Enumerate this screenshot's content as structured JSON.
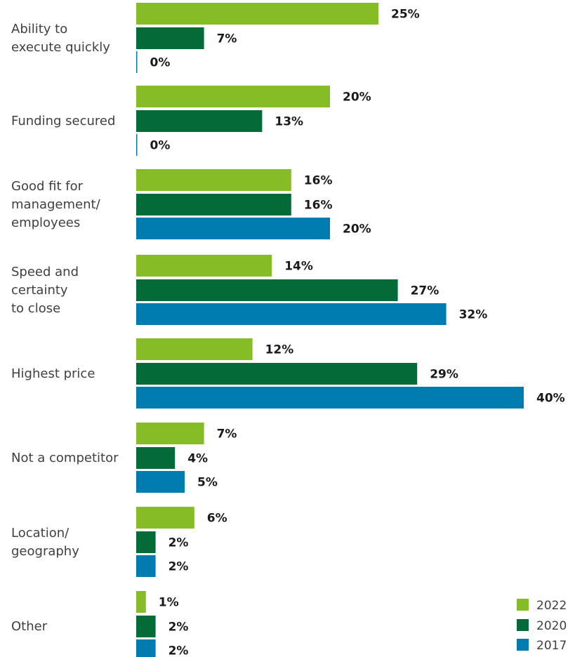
{
  "chart_data": {
    "type": "bar",
    "orientation": "horizontal",
    "categories": [
      [
        "Ability to",
        "execute quickly"
      ],
      [
        "Funding secured"
      ],
      [
        "Good fit for",
        "management/",
        "employees"
      ],
      [
        "Speed and",
        "certainty",
        "to close"
      ],
      [
        "Highest price"
      ],
      [
        "Not a competitor"
      ],
      [
        "Location/",
        "geography"
      ],
      [
        "Other"
      ]
    ],
    "series": [
      {
        "name": "2022",
        "color": "#86bc25",
        "values": [
          25,
          20,
          16,
          14,
          12,
          7,
          6,
          1
        ]
      },
      {
        "name": "2020",
        "color": "#046a38",
        "values": [
          7,
          13,
          16,
          27,
          29,
          4,
          2,
          2
        ]
      },
      {
        "name": "2017",
        "color": "#007cb0",
        "values": [
          0,
          0,
          20,
          32,
          40,
          5,
          2,
          2
        ]
      }
    ],
    "value_suffix": "%",
    "xlim": [
      0,
      40
    ],
    "grid": false,
    "legend_position": "bottom-right"
  }
}
